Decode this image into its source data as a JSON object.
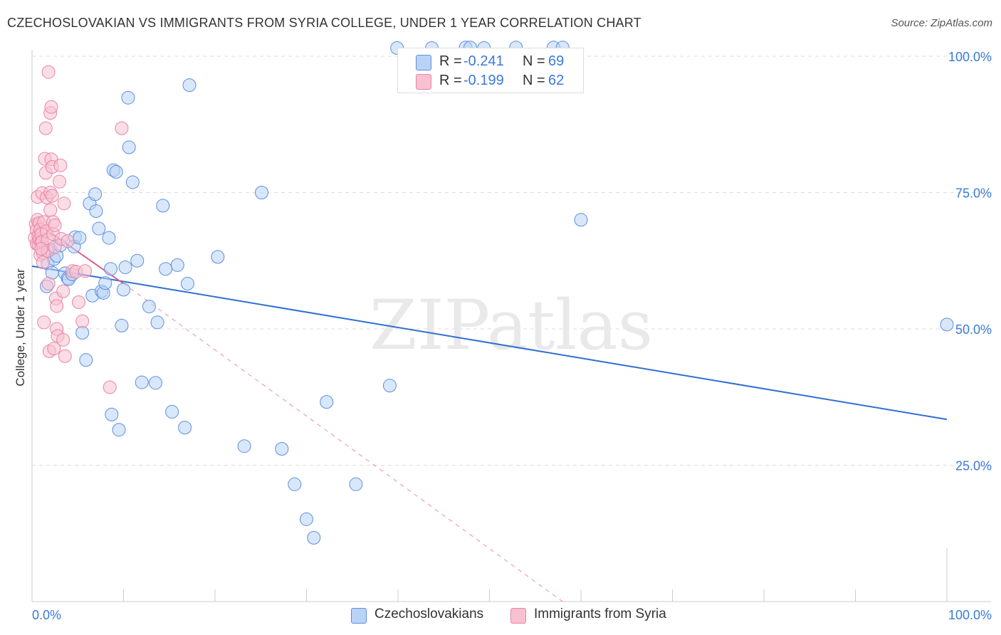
{
  "header": {
    "title": "CZECHOSLOVAKIAN VS IMMIGRANTS FROM SYRIA COLLEGE, UNDER 1 YEAR CORRELATION CHART",
    "source": "Source: ZipAtlas.com"
  },
  "watermark": "ZIPatlas",
  "colors": {
    "blue_fill": "#b9d3f5",
    "blue_stroke": "#5b8fe0",
    "blue_line": "#2f6fd0",
    "pink_fill": "#f7c1d2",
    "pink_stroke": "#e884a6",
    "pink_line": "#e05c8a",
    "value_text": "#3b78d8",
    "grid": "#dddddd"
  },
  "stats": [
    {
      "series": "Czechoslovakians",
      "r_label": "R =",
      "r": "-0.241",
      "n_label": "N =",
      "n": "69"
    },
    {
      "series": "Immigrants from Syria",
      "r_label": "R =",
      "r": "-0.199",
      "n_label": "N =",
      "n": "62"
    }
  ],
  "chart_data": {
    "type": "scatter",
    "title": "CZECHOSLOVAKIAN VS IMMIGRANTS FROM SYRIA COLLEGE, UNDER 1 YEAR CORRELATION CHART",
    "xlabel": "",
    "ylabel": "College, Under 1 year",
    "xlim": [
      0,
      100
    ],
    "ylim": [
      0,
      102.5
    ],
    "x_tick_labels": [
      "0.0%",
      "100.0%"
    ],
    "y_ticks": [
      25,
      50,
      75,
      100
    ],
    "y_tick_labels": [
      "25.0%",
      "50.0%",
      "75.0%",
      "100.0%"
    ],
    "grid": true,
    "legend_position": "bottom-center",
    "series": [
      {
        "name": "Czechoslovakians",
        "r": -0.241,
        "n": 69,
        "trend": {
          "x": [
            0,
            100
          ],
          "y": [
            61.5,
            33.4
          ],
          "style": "solid"
        },
        "points": [
          [
            1.2,
            65.2
          ],
          [
            1.6,
            57.8
          ],
          [
            1.7,
            62.0
          ],
          [
            2.0,
            64.5
          ],
          [
            2.2,
            60.3
          ],
          [
            2.4,
            62.8
          ],
          [
            2.7,
            63.4
          ],
          [
            3.1,
            65.3
          ],
          [
            3.6,
            60.2
          ],
          [
            3.9,
            59.3
          ],
          [
            4.0,
            59.1
          ],
          [
            4.4,
            60.0
          ],
          [
            4.7,
            66.8
          ],
          [
            4.6,
            65.1
          ],
          [
            5.2,
            66.7
          ],
          [
            5.5,
            49.3
          ],
          [
            5.9,
            44.3
          ],
          [
            6.3,
            73.0
          ],
          [
            6.6,
            56.1
          ],
          [
            6.9,
            74.7
          ],
          [
            7.0,
            71.6
          ],
          [
            7.3,
            68.4
          ],
          [
            7.6,
            56.9
          ],
          [
            7.8,
            56.6
          ],
          [
            8.0,
            58.4
          ],
          [
            8.4,
            66.7
          ],
          [
            8.6,
            61.0
          ],
          [
            8.7,
            34.3
          ],
          [
            8.9,
            79.1
          ],
          [
            9.2,
            78.8
          ],
          [
            9.5,
            31.5
          ],
          [
            9.8,
            50.6
          ],
          [
            10.0,
            57.2
          ],
          [
            10.2,
            61.3
          ],
          [
            10.5,
            92.4
          ],
          [
            10.6,
            83.3
          ],
          [
            11.0,
            76.9
          ],
          [
            11.5,
            62.5
          ],
          [
            12.0,
            40.2
          ],
          [
            12.8,
            54.1
          ],
          [
            13.5,
            40.1
          ],
          [
            13.7,
            51.2
          ],
          [
            14.3,
            72.6
          ],
          [
            14.6,
            61.0
          ],
          [
            15.3,
            34.8
          ],
          [
            15.9,
            61.7
          ],
          [
            16.7,
            31.9
          ],
          [
            17.0,
            58.3
          ],
          [
            17.2,
            94.7
          ],
          [
            20.3,
            63.2
          ],
          [
            23.2,
            28.5
          ],
          [
            25.1,
            75.0
          ],
          [
            27.3,
            28.0
          ],
          [
            28.7,
            21.5
          ],
          [
            30.0,
            15.1
          ],
          [
            30.8,
            11.7
          ],
          [
            32.2,
            36.6
          ],
          [
            35.4,
            21.5
          ],
          [
            39.1,
            39.6
          ],
          [
            39.9,
            101.5
          ],
          [
            43.7,
            101.5
          ],
          [
            47.4,
            101.6
          ],
          [
            47.9,
            101.6
          ],
          [
            49.4,
            101.5
          ],
          [
            52.9,
            101.6
          ],
          [
            57.0,
            101.6
          ],
          [
            58.0,
            101.6
          ],
          [
            60.0,
            70.0
          ],
          [
            100.0,
            50.8
          ]
        ]
      },
      {
        "name": "Immigrants from Syria",
        "r": -0.199,
        "n": 62,
        "trend": {
          "x": [
            0,
            10
          ],
          "y": [
            70.0,
            58.3
          ],
          "style": "solid",
          "ext_x": [
            10,
            58
          ],
          "ext_y": [
            58.3,
            0
          ],
          "ext_style": "dashed"
        },
        "points": [
          [
            0.3,
            66.7
          ],
          [
            0.4,
            69.2
          ],
          [
            0.5,
            68.1
          ],
          [
            0.5,
            65.6
          ],
          [
            0.6,
            74.2
          ],
          [
            0.6,
            70.0
          ],
          [
            0.7,
            67.0
          ],
          [
            0.7,
            65.5
          ],
          [
            0.8,
            69.4
          ],
          [
            0.8,
            66.4
          ],
          [
            0.9,
            63.6
          ],
          [
            0.9,
            68.2
          ],
          [
            1.0,
            67.4
          ],
          [
            1.0,
            65.8
          ],
          [
            1.1,
            74.9
          ],
          [
            1.1,
            66.0
          ],
          [
            1.2,
            63.9
          ],
          [
            1.2,
            62.2
          ],
          [
            1.3,
            69.6
          ],
          [
            1.3,
            51.2
          ],
          [
            1.4,
            81.2
          ],
          [
            1.5,
            86.8
          ],
          [
            1.5,
            78.6
          ],
          [
            1.6,
            74.1
          ],
          [
            1.6,
            67.9
          ],
          [
            1.7,
            66.3
          ],
          [
            1.7,
            64.3
          ],
          [
            1.8,
            97.1
          ],
          [
            1.8,
            58.3
          ],
          [
            1.9,
            45.9
          ],
          [
            2.0,
            89.6
          ],
          [
            2.0,
            75.0
          ],
          [
            2.0,
            71.8
          ],
          [
            2.1,
            90.7
          ],
          [
            2.1,
            81.1
          ],
          [
            2.2,
            79.7
          ],
          [
            2.2,
            74.4
          ],
          [
            2.3,
            69.6
          ],
          [
            2.3,
            67.4
          ],
          [
            2.4,
            46.4
          ],
          [
            2.5,
            69.0
          ],
          [
            2.5,
            65.0
          ],
          [
            2.6,
            55.6
          ],
          [
            2.7,
            54.2
          ],
          [
            2.7,
            50.0
          ],
          [
            2.8,
            48.7
          ],
          [
            3.0,
            77.0
          ],
          [
            3.1,
            80.0
          ],
          [
            3.2,
            66.5
          ],
          [
            3.4,
            56.9
          ],
          [
            3.4,
            48.0
          ],
          [
            3.5,
            73.0
          ],
          [
            3.6,
            45.0
          ],
          [
            3.9,
            66.1
          ],
          [
            4.4,
            60.6
          ],
          [
            4.8,
            60.5
          ],
          [
            5.1,
            54.9
          ],
          [
            5.5,
            51.4
          ],
          [
            5.8,
            60.6
          ],
          [
            8.5,
            39.3
          ],
          [
            9.8,
            86.8
          ],
          [
            1.0,
            64.7
          ]
        ]
      }
    ]
  }
}
